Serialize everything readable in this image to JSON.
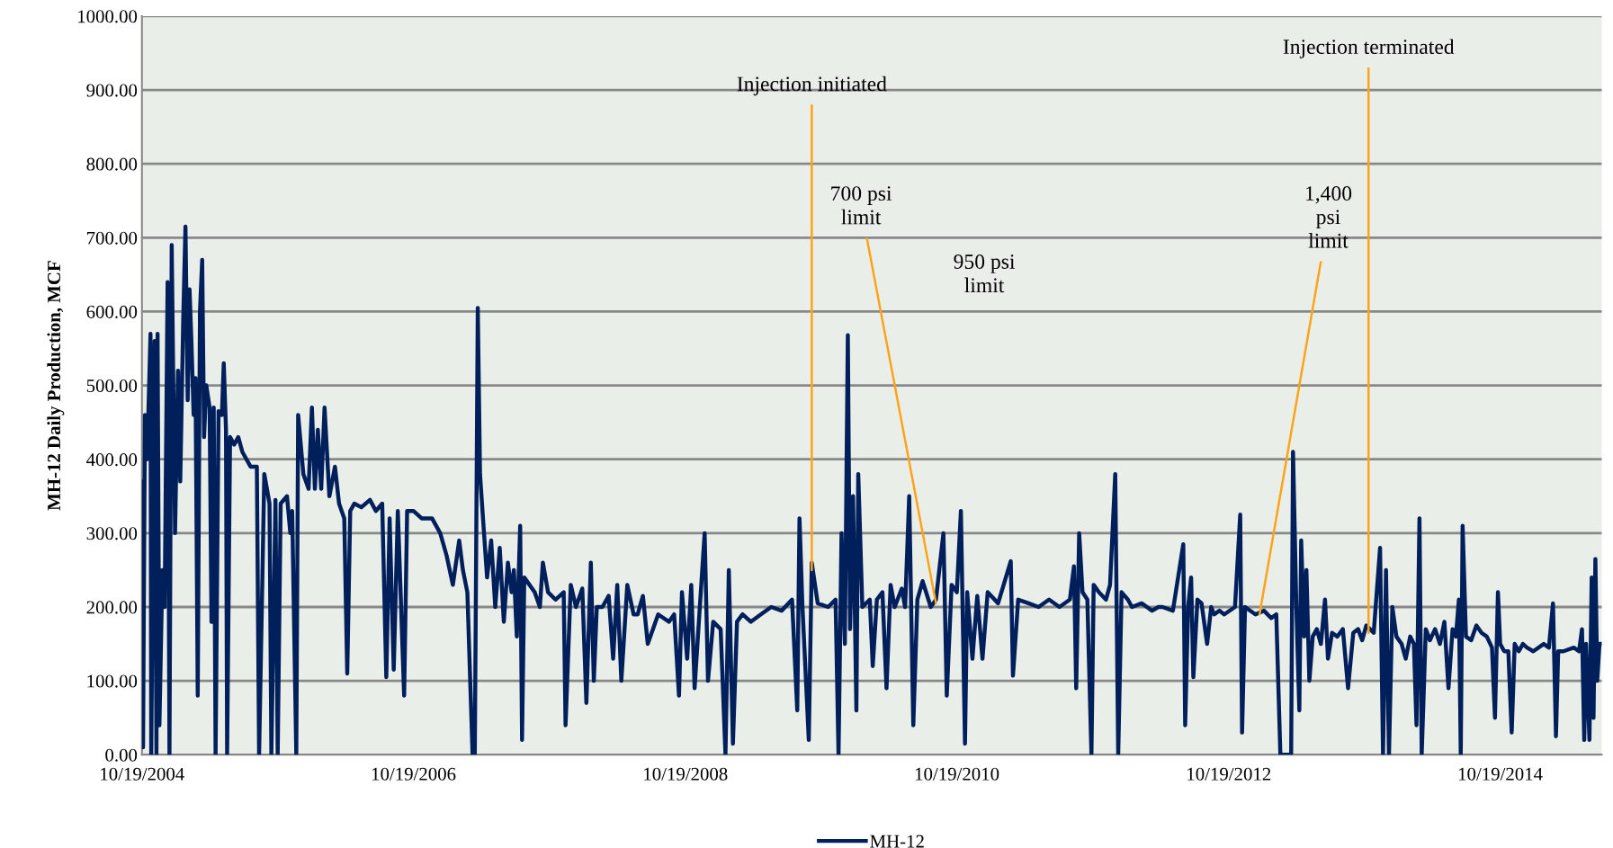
{
  "chart_data": {
    "type": "line",
    "ylabel": "MH-12 Daily Production, MCF",
    "x": [
      "2004-10-19",
      "2004-10-22",
      "2004-10-27",
      "2004-11-02",
      "2004-11-11",
      "2004-11-13",
      "2004-11-22",
      "2004-11-27",
      "2004-11-30",
      "2004-12-05",
      "2004-12-13",
      "2004-12-19",
      "2004-12-27",
      "2005-01-01",
      "2005-01-07",
      "2005-01-16",
      "2005-01-24",
      "2005-01-30",
      "2005-02-07",
      "2005-02-13",
      "2005-02-19",
      "2005-02-24",
      "2005-03-01",
      "2005-03-07",
      "2005-03-12",
      "2005-03-18",
      "2005-03-24",
      "2005-03-30",
      "2005-04-04",
      "2005-04-10",
      "2005-04-19",
      "2005-04-24",
      "2005-04-30",
      "2005-05-05",
      "2005-05-13",
      "2005-05-22",
      "2005-05-27",
      "2005-06-02",
      "2005-06-05",
      "2005-06-13",
      "2005-06-24",
      "2005-07-05",
      "2005-07-16",
      "2005-07-27",
      "2005-08-07",
      "2005-08-24",
      "2005-08-30",
      "2005-09-13",
      "2005-09-27",
      "2005-10-02",
      "2005-10-13",
      "2005-10-19",
      "2005-10-27",
      "2005-11-13",
      "2005-11-22",
      "2005-11-27",
      "2005-12-08",
      "2005-12-13",
      "2005-12-27",
      "2006-01-10",
      "2006-01-19",
      "2006-01-27",
      "2006-02-04",
      "2006-02-13",
      "2006-02-22",
      "2006-03-07",
      "2006-03-22",
      "2006-04-02",
      "2006-04-16",
      "2006-04-24",
      "2006-05-02",
      "2006-05-13",
      "2006-06-01",
      "2006-06-24",
      "2006-07-10",
      "2006-07-27",
      "2006-08-07",
      "2006-08-16",
      "2006-08-27",
      "2006-09-07",
      "2006-09-24",
      "2006-10-02",
      "2006-10-19",
      "2006-11-10",
      "2006-12-08",
      "2006-12-30",
      "2007-01-16",
      "2007-02-02",
      "2007-02-19",
      "2007-03-01",
      "2007-03-13",
      "2007-03-27",
      "2007-04-02",
      "2007-04-10",
      "2007-04-16",
      "2007-04-24",
      "2007-05-05",
      "2007-05-16",
      "2007-05-27",
      "2007-06-08",
      "2007-06-19",
      "2007-06-30",
      "2007-07-10",
      "2007-07-16",
      "2007-07-24",
      "2007-08-02",
      "2007-08-07",
      "2007-08-13",
      "2007-08-27",
      "2007-09-10",
      "2007-09-24",
      "2007-10-02",
      "2007-10-16",
      "2007-11-05",
      "2007-11-27",
      "2007-12-02",
      "2007-12-16",
      "2007-12-30",
      "2008-01-16",
      "2008-01-27",
      "2008-02-08",
      "2008-02-16",
      "2008-02-24",
      "2008-03-10",
      "2008-03-27",
      "2008-04-08",
      "2008-04-19",
      "2008-04-30",
      "2008-05-16",
      "2008-06-02",
      "2008-06-13",
      "2008-06-27",
      "2008-07-10",
      "2008-08-07",
      "2008-09-05",
      "2008-09-19",
      "2008-10-02",
      "2008-10-10",
      "2008-10-24",
      "2008-11-04",
      "2008-11-13",
      "2008-11-27",
      "2008-12-10",
      "2008-12-19",
      "2009-01-02",
      "2009-01-22",
      "2009-02-04",
      "2009-02-13",
      "2009-02-24",
      "2009-03-07",
      "2009-03-22",
      "2009-04-13",
      "2009-05-10",
      "2009-06-07",
      "2009-07-05",
      "2009-08-02",
      "2009-08-16",
      "2009-08-22",
      "2009-08-30",
      "2009-09-16",
      "2009-09-24",
      "2009-10-10",
      "2009-11-07",
      "2009-11-27",
      "2009-12-05",
      "2009-12-13",
      "2009-12-22",
      "2009-12-30",
      "2010-01-05",
      "2010-01-13",
      "2010-01-22",
      "2010-01-27",
      "2010-02-07",
      "2010-02-27",
      "2010-03-07",
      "2010-03-18",
      "2010-04-02",
      "2010-04-13",
      "2010-04-24",
      "2010-05-05",
      "2010-05-24",
      "2010-06-02",
      "2010-06-13",
      "2010-06-24",
      "2010-07-05",
      "2010-07-19",
      "2010-08-10",
      "2010-08-24",
      "2010-09-13",
      "2010-09-22",
      "2010-10-05",
      "2010-10-19",
      "2010-10-30",
      "2010-11-10",
      "2010-11-16",
      "2010-11-30",
      "2010-12-13",
      "2010-12-27",
      "2011-01-10",
      "2011-02-07",
      "2011-03-13",
      "2011-03-19",
      "2011-04-02",
      "2011-04-30",
      "2011-05-27",
      "2011-06-24",
      "2011-07-22",
      "2011-08-19",
      "2011-08-30",
      "2011-09-05",
      "2011-09-13",
      "2011-09-22",
      "2011-10-05",
      "2011-10-16",
      "2011-10-22",
      "2011-11-05",
      "2011-11-24",
      "2011-12-05",
      "2011-12-19",
      "2011-12-27",
      "2012-01-05",
      "2012-01-22",
      "2012-02-02",
      "2012-02-28",
      "2012-03-27",
      "2012-04-13",
      "2012-04-24",
      "2012-05-22",
      "2012-06-19",
      "2012-06-24",
      "2012-07-02",
      "2012-07-10",
      "2012-07-16",
      "2012-07-27",
      "2012-08-07",
      "2012-08-22",
      "2012-09-02",
      "2012-09-10",
      "2012-09-24",
      "2012-10-07",
      "2012-11-05",
      "2012-11-19",
      "2012-11-24",
      "2012-12-02",
      "2012-12-30",
      "2013-01-22",
      "2013-02-10",
      "2013-02-24",
      "2013-03-07",
      "2013-04-05",
      "2013-04-10",
      "2013-04-19",
      "2013-04-27",
      "2013-05-02",
      "2013-05-10",
      "2013-05-16",
      "2013-05-24",
      "2013-06-02",
      "2013-06-13",
      "2013-06-24",
      "2013-07-05",
      "2013-07-13",
      "2013-07-24",
      "2013-08-07",
      "2013-08-22",
      "2013-09-05",
      "2013-09-19",
      "2013-10-02",
      "2013-10-13",
      "2013-10-24",
      "2013-11-13",
      "2013-11-30",
      "2013-12-08",
      "2013-12-16",
      "2013-12-24",
      "2014-01-02",
      "2014-01-13",
      "2014-01-27",
      "2014-02-07",
      "2014-02-19",
      "2014-03-01",
      "2014-03-08",
      "2014-03-16",
      "2014-03-22",
      "2014-04-02",
      "2014-04-13",
      "2014-04-27",
      "2014-05-10",
      "2014-05-22",
      "2014-06-02",
      "2014-06-13",
      "2014-06-22",
      "2014-06-30",
      "2014-07-05",
      "2014-07-10",
      "2014-07-19",
      "2014-08-02",
      "2014-08-16",
      "2014-08-30",
      "2014-09-13",
      "2014-09-27",
      "2014-10-05",
      "2014-10-13",
      "2014-10-19",
      "2014-10-30",
      "2014-11-10",
      "2014-11-19",
      "2014-11-27",
      "2014-12-08",
      "2014-12-19",
      "2014-12-30",
      "2015-01-16",
      "2015-02-13",
      "2015-02-27",
      "2015-03-10",
      "2015-03-18",
      "2015-03-24",
      "2015-04-07",
      "2015-05-05",
      "2015-05-19",
      "2015-05-27",
      "2015-06-02",
      "2015-06-07",
      "2015-06-16",
      "2015-06-22",
      "2015-06-27",
      "2015-07-02",
      "2015-07-07",
      "2015-07-13",
      "2015-07-19"
    ],
    "series": [
      {
        "name": "MH-12",
        "color": "#001f5b",
        "values": [
          370,
          10,
          460,
          400,
          570,
          0,
          560,
          0,
          570,
          40,
          250,
          200,
          640,
          0,
          690,
          300,
          520,
          370,
          590,
          715,
          480,
          630,
          560,
          460,
          510,
          80,
          600,
          670,
          430,
          500,
          470,
          180,
          470,
          0,
          465,
          460,
          530,
          440,
          0,
          430,
          420,
          430,
          410,
          400,
          390,
          390,
          0,
          380,
          340,
          0,
          345,
          0,
          340,
          350,
          300,
          330,
          0,
          460,
          380,
          360,
          470,
          360,
          440,
          360,
          470,
          350,
          390,
          340,
          320,
          110,
          330,
          340,
          335,
          345,
          330,
          340,
          105,
          320,
          115,
          330,
          80,
          330,
          330,
          320,
          320,
          300,
          270,
          230,
          290,
          250,
          220,
          0,
          0,
          605,
          380,
          320,
          240,
          290,
          200,
          280,
          180,
          260,
          220,
          250,
          160,
          310,
          20,
          240,
          230,
          220,
          200,
          260,
          220,
          210,
          220,
          40,
          230,
          200,
          225,
          70,
          260,
          100,
          200,
          200,
          215,
          130,
          230,
          100,
          230,
          190,
          190,
          215,
          150,
          190,
          180,
          190,
          80,
          220,
          130,
          230,
          90,
          200,
          300,
          100,
          180,
          170,
          0,
          250,
          15,
          180,
          190,
          180,
          190,
          200,
          195,
          210,
          60,
          320,
          200,
          20,
          260,
          205,
          200,
          210,
          0,
          300,
          150,
          568,
          170,
          350,
          60,
          380,
          200,
          210,
          120,
          210,
          220,
          90,
          230,
          200,
          225,
          200,
          350,
          40,
          210,
          235,
          200,
          210,
          300,
          80,
          230,
          220,
          330,
          15,
          220,
          130,
          215,
          130,
          220,
          205,
          262,
          107,
          210,
          205,
          200,
          210,
          200,
          210,
          255,
          90,
          300,
          220,
          210,
          0,
          230,
          220,
          210,
          230,
          380,
          0,
          220,
          210,
          200,
          205,
          195,
          200,
          200,
          195,
          285,
          40,
          200,
          240,
          105,
          210,
          205,
          150,
          200,
          190,
          195,
          190,
          200,
          325,
          30,
          200,
          190,
          195,
          185,
          190,
          0,
          0,
          410,
          200,
          60,
          290,
          160,
          250,
          100,
          160,
          170,
          150,
          210,
          130,
          165,
          160,
          170,
          90,
          165,
          170,
          155,
          175,
          165,
          280,
          0,
          250,
          0,
          200,
          160,
          150,
          130,
          160,
          150,
          40,
          320,
          0,
          170,
          155,
          170,
          150,
          180,
          90,
          170,
          160,
          210,
          0,
          310,
          160,
          155,
          175,
          165,
          160,
          145,
          50,
          220,
          150,
          140,
          140,
          30,
          150,
          140,
          150,
          145,
          140,
          150,
          145,
          205,
          25,
          140,
          140,
          145,
          140,
          170,
          20,
          150,
          20,
          240,
          50,
          265,
          100,
          150,
          150
        ]
      }
    ],
    "xlim": [
      "2004-10-19",
      "2015-07-19"
    ],
    "xticks": [
      {
        "value": "2004-10-19",
        "label": "10/19/2004"
      },
      {
        "value": "2006-10-19",
        "label": "10/19/2006"
      },
      {
        "value": "2008-10-19",
        "label": "10/19/2008"
      },
      {
        "value": "2010-10-19",
        "label": "10/19/2010"
      },
      {
        "value": "2012-10-19",
        "label": "10/19/2012"
      },
      {
        "value": "2014-10-19",
        "label": "10/19/2014"
      }
    ],
    "ylim": [
      0,
      1000
    ],
    "yticks": [
      {
        "value": 0,
        "label": "0.00"
      },
      {
        "value": 100,
        "label": "100.00"
      },
      {
        "value": 200,
        "label": "200.00"
      },
      {
        "value": 300,
        "label": "300.00"
      },
      {
        "value": 400,
        "label": "400.00"
      },
      {
        "value": 500,
        "label": "500.00"
      },
      {
        "value": 600,
        "label": "600.00"
      },
      {
        "value": 700,
        "label": "700.00"
      },
      {
        "value": 800,
        "label": "800.00"
      },
      {
        "value": 900,
        "label": "900.00"
      },
      {
        "value": 1000,
        "label": "1000.00"
      }
    ],
    "annotations": [
      {
        "text": "Injection initiated",
        "x": "2009-09-24",
        "y": 250
      },
      {
        "text": "700 psi\nlimit",
        "x": "2010-08-24",
        "y": 205
      },
      "950 psi\nlimit",
      {
        "text": "1,400\npsi\nlimit",
        "x": "2013-01-10",
        "y": 190
      },
      {
        "text": "Injection terminated",
        "x": "2013-10-30",
        "y": 165
      }
    ],
    "grid": "y",
    "legend": "bottom",
    "marker": "none",
    "line_style": "solid"
  }
}
